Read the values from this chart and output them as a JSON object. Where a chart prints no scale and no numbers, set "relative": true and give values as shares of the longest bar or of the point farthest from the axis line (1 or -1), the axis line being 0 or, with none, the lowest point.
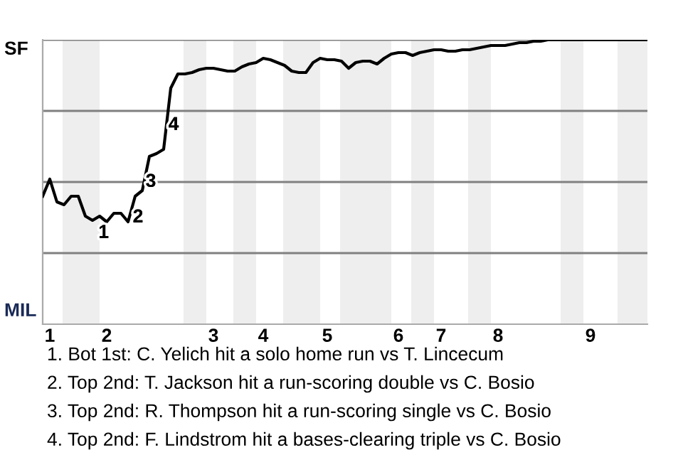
{
  "chart_data": {
    "type": "line",
    "relative": true,
    "categories": [
      null,
      "1",
      null,
      null,
      null,
      null,
      null,
      null,
      null,
      "2",
      null,
      null,
      null,
      null,
      null,
      null,
      null,
      null,
      null,
      null,
      null,
      null,
      null,
      null,
      "3",
      null,
      null,
      null,
      null,
      null,
      null,
      "4",
      null,
      null,
      null,
      null,
      null,
      null,
      null,
      null,
      "5",
      null,
      null,
      null,
      null,
      null,
      null,
      null,
      null,
      null,
      "6",
      null,
      null,
      null,
      null,
      null,
      "7",
      null,
      null,
      null,
      null,
      null,
      null,
      null,
      "8",
      null,
      null,
      null,
      null,
      null,
      null,
      null,
      null,
      null,
      null,
      null,
      null,
      "9",
      null,
      null,
      null,
      null,
      null,
      null,
      null,
      null
    ],
    "series": [
      {
        "color": "#000000",
        "values": [
          0.45,
          0.51,
          0.43,
          0.42,
          0.45,
          0.45,
          0.38,
          0.365,
          0.38,
          0.36,
          0.39,
          0.39,
          0.36,
          0.45,
          0.47,
          0.59,
          0.6,
          0.615,
          0.83,
          0.88,
          0.88,
          0.885,
          0.895,
          0.9,
          0.9,
          0.895,
          0.89,
          0.89,
          0.905,
          0.915,
          0.92,
          0.935,
          0.93,
          0.92,
          0.91,
          0.89,
          0.885,
          0.885,
          0.92,
          0.935,
          0.93,
          0.93,
          0.925,
          0.9,
          0.92,
          0.925,
          0.925,
          0.915,
          0.935,
          0.95,
          0.955,
          0.955,
          0.945,
          0.955,
          0.96,
          0.965,
          0.965,
          0.96,
          0.96,
          0.965,
          0.965,
          0.97,
          0.975,
          0.98,
          0.98,
          0.98,
          0.985,
          0.99,
          0.99,
          0.995,
          0.995,
          1,
          1,
          1,
          1,
          1,
          1,
          1,
          1,
          1,
          1,
          1,
          1,
          1,
          1,
          1
        ],
        "line_style": "solid"
      }
    ],
    "ref_lines": [
      {
        "axis": "y",
        "value": 0.25,
        "color": "#808080"
      },
      {
        "axis": "y",
        "value": 0.5,
        "color": "#808080"
      },
      {
        "axis": "y",
        "value": 0.75,
        "color": "#808080"
      },
      {
        "axis": "y",
        "value": 1,
        "color": "#808080"
      }
    ],
    "annotations": [
      "SF",
      "MIL",
      {
        "text": "1",
        "y": 0.365
      },
      "2",
      "3",
      "4",
      "1. Bot 1st: C. Yelich hit a solo home run vs T. Lincecum",
      "2. Top 2nd: T. Jackson hit a run-scoring double vs C. Bosio",
      "3. Top 2nd: R. Thompson hit a run-scoring single vs C. Bosio",
      "4. Top 2nd: F. Lindstrom hit a bases-clearing triple vs C. Bosio"
    ]
  }
}
